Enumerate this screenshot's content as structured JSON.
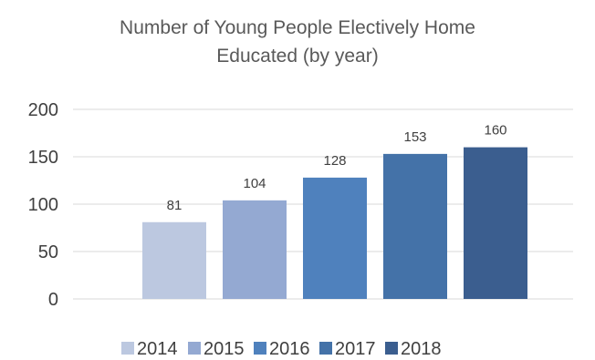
{
  "chart_data": {
    "type": "bar",
    "title_lines": [
      "Number of Young People Electively Home",
      "Educated (by year)"
    ],
    "categories": [
      "2014",
      "2015",
      "2016",
      "2017",
      "2018"
    ],
    "values": [
      81,
      104,
      128,
      153,
      160
    ],
    "ylim": [
      0,
      200
    ],
    "yticks": [
      0,
      50,
      100,
      150,
      200
    ],
    "colors": [
      "#bcc8e0",
      "#94a9d2",
      "#4f81bd",
      "#4472a8",
      "#3b5e8f"
    ],
    "grid": true,
    "legend_position": "bottom"
  }
}
